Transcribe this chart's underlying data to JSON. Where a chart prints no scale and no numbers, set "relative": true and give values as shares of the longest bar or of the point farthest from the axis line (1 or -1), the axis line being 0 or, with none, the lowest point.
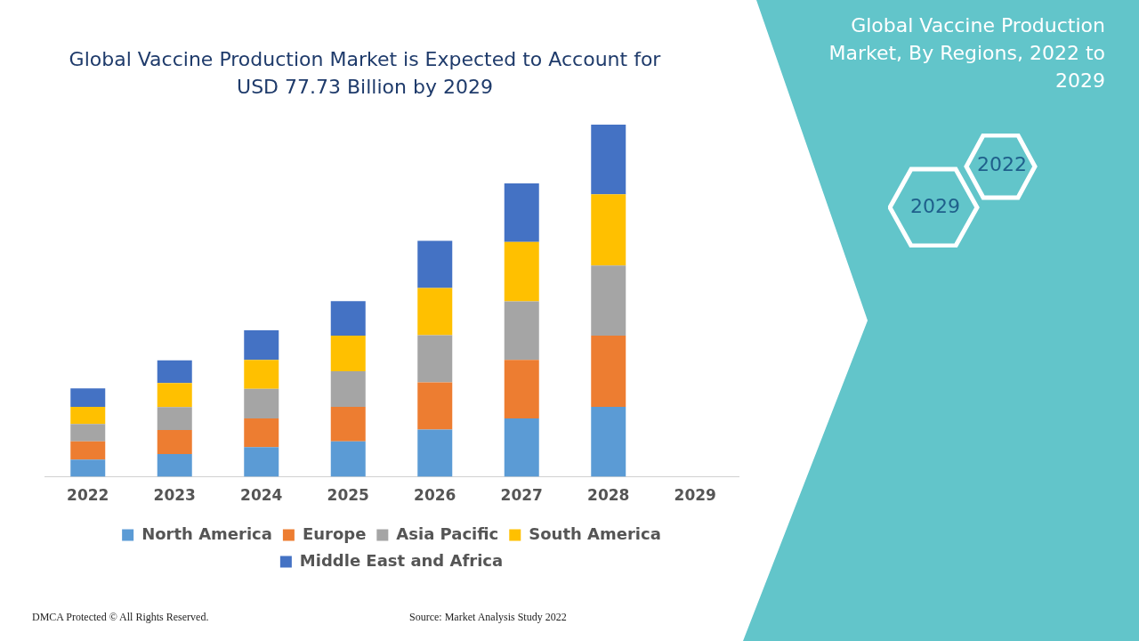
{
  "chart_data": {
    "type": "bar",
    "title": "Global Vaccine Production Market is Expected to Account for USD 77.73 Billion by 2029",
    "subtitle": "Global Vaccine Production Market, By Regions, 2022 to 2029",
    "categories": [
      "2022",
      "2023",
      "2024",
      "2025",
      "2026",
      "2027",
      "2028",
      "2029"
    ],
    "stacked": true,
    "relative": true,
    "legend": "bottom",
    "grid": false,
    "tick_labels": "x",
    "series": [
      {
        "name": "North America",
        "color": "#5b9bd5",
        "values": [
          0.049,
          0.065,
          0.084,
          0.101,
          0.134,
          0.166,
          0.199,
          null
        ]
      },
      {
        "name": "Europe",
        "color": "#ed7d31",
        "values": [
          0.052,
          0.068,
          0.082,
          0.098,
          0.134,
          0.166,
          0.202,
          null
        ]
      },
      {
        "name": "Asia Pacific",
        "color": "#a5a5a5",
        "values": [
          0.049,
          0.065,
          0.084,
          0.101,
          0.134,
          0.166,
          0.199,
          null
        ]
      },
      {
        "name": "South America",
        "color": "#ffc000",
        "values": [
          0.049,
          0.068,
          0.082,
          0.101,
          0.134,
          0.169,
          0.202,
          null
        ]
      },
      {
        "name": "Middle East and Africa",
        "color": "#4472c4",
        "values": [
          0.052,
          0.065,
          0.084,
          0.098,
          0.134,
          0.166,
          0.198,
          null
        ]
      }
    ],
    "annotations": [
      "DMCA Protected © All Rights Reserved.",
      "Source: Market Analysis Study 2022",
      "2022",
      "2029"
    ]
  }
}
